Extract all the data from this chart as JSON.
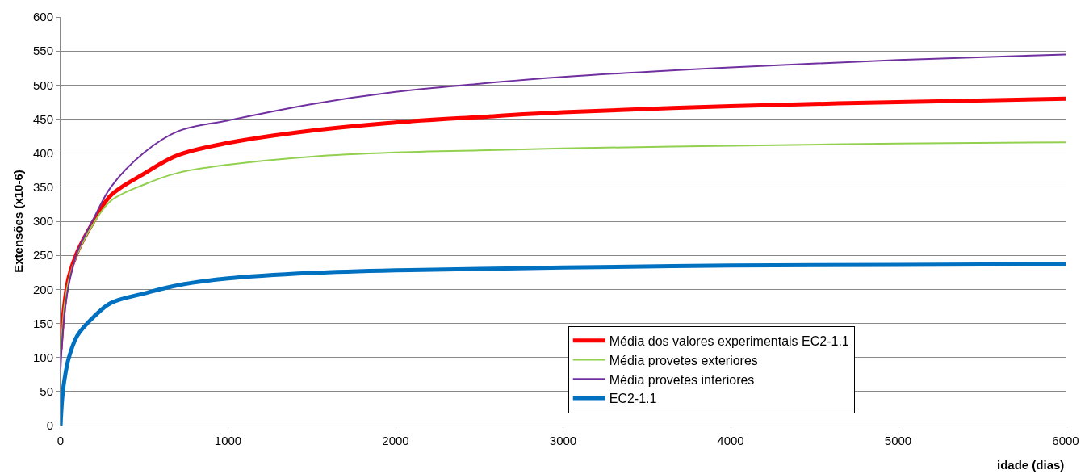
{
  "chart_data": {
    "type": "line",
    "xlabel": "idade (dias)",
    "ylabel": "Extensões (x10-6)",
    "x": [
      0,
      10,
      25,
      50,
      100,
      200,
      300,
      500,
      700,
      1000,
      1500,
      2000,
      2500,
      3000,
      4000,
      5000,
      6000
    ],
    "series": [
      {
        "name": "Média dos valores experimentais EC2-1.1",
        "color": "#ff0000",
        "values": [
          112,
          145,
          182,
          219,
          255,
          301,
          338,
          370,
          397,
          415,
          433,
          445,
          453,
          460,
          469,
          475,
          480
        ]
      },
      {
        "name": "Média provetes exteriores",
        "color": "#92d050",
        "values": [
          104,
          140,
          180,
          215,
          252,
          298,
          330,
          354,
          371,
          383,
          395,
          401,
          404,
          407,
          411,
          414,
          416
        ]
      },
      {
        "name": "Média provetes interiores",
        "color": "#7030a0",
        "values": [
          83,
          125,
          168,
          208,
          255,
          305,
          350,
          401,
          432,
          448,
          472,
          490,
          502,
          512,
          526,
          537,
          545
        ]
      },
      {
        "name": "EC2-1.1",
        "color": "#0070c0",
        "values": [
          0,
          40,
          70,
          100,
          132,
          160,
          180,
          194,
          206,
          216,
          224,
          228,
          230,
          232,
          235,
          236,
          237
        ]
      }
    ],
    "xlim": [
      0,
      6000
    ],
    "xticks": [
      0,
      1000,
      2000,
      3000,
      4000,
      5000,
      6000
    ],
    "ylim": [
      0,
      600
    ],
    "yticks": [
      0,
      50,
      100,
      150,
      200,
      250,
      300,
      350,
      400,
      450,
      500,
      550,
      600
    ],
    "grid": "y",
    "legend": "bottom",
    "marker": "none",
    "line_style": "solid"
  }
}
